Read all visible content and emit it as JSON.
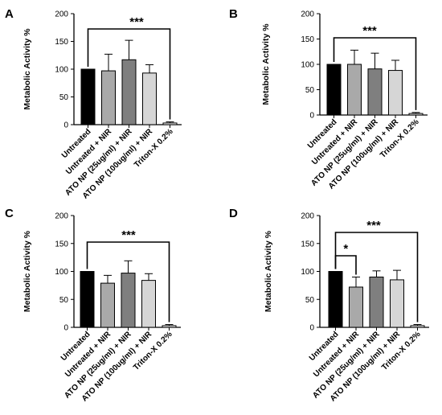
{
  "chart_data": [
    {
      "type": "bar",
      "panel_label": "A",
      "ylabel": "Metabolic Activity %",
      "ylim": [
        0,
        200
      ],
      "yticks": [
        "0",
        "50",
        "100",
        "150",
        "200"
      ],
      "categories": [
        "Untreated",
        "Untreated + NIR",
        "ATO NP (25ug/ml) + NIR",
        "ATO NP (100ug/ml) + NIR",
        "Triton-X 0.2%"
      ],
      "values": [
        100,
        97,
        117,
        93,
        3
      ],
      "errors": [
        0,
        30,
        35,
        15,
        2
      ],
      "bar_colors": [
        "#000000",
        "#a9a9a9",
        "#7f7f7f",
        "#d6d6d6",
        "#ffffff"
      ],
      "significance": [
        {
          "from": 0,
          "to": 4,
          "label": "***"
        }
      ]
    },
    {
      "type": "bar",
      "panel_label": "B",
      "ylabel": "Metabolic Activity %",
      "ylim": [
        0,
        200
      ],
      "yticks": [
        "0",
        "50",
        "100",
        "150",
        "200"
      ],
      "categories": [
        "Untreated",
        "Untreated + NIR",
        "ATO NP (25ug/ml) + NIR",
        "ATO NP (100ug/ml) + NIR",
        "Triton-X 0.2%"
      ],
      "values": [
        100,
        100,
        91,
        88,
        3
      ],
      "errors": [
        0,
        28,
        31,
        20,
        2
      ],
      "bar_colors": [
        "#000000",
        "#a9a9a9",
        "#7f7f7f",
        "#d6d6d6",
        "#ffffff"
      ],
      "significance": [
        {
          "from": 0,
          "to": 4,
          "label": "***"
        }
      ]
    },
    {
      "type": "bar",
      "panel_label": "C",
      "ylabel": "Metabolic Activity %",
      "ylim": [
        0,
        200
      ],
      "yticks": [
        "0",
        "50",
        "100",
        "150",
        "200"
      ],
      "categories": [
        "Untreated",
        "Untreated + NIR",
        "ATO NP (25ug/ml) + NIR",
        "ATO NP (100ug/ml) + NIR",
        "Triton-X 0.2%"
      ],
      "values": [
        100,
        79,
        97,
        84,
        3
      ],
      "errors": [
        0,
        14,
        22,
        12,
        2
      ],
      "bar_colors": [
        "#000000",
        "#a9a9a9",
        "#7f7f7f",
        "#d6d6d6",
        "#ffffff"
      ],
      "significance": [
        {
          "from": 0,
          "to": 4,
          "label": "***"
        }
      ]
    },
    {
      "type": "bar",
      "panel_label": "D",
      "ylabel": "Metabolic Activity %",
      "ylim": [
        0,
        200
      ],
      "yticks": [
        "0",
        "50",
        "100",
        "150",
        "200"
      ],
      "categories": [
        "Untreated",
        "Untreated + NIR",
        "ATO NP (25ug/ml) + NIR",
        "ATO NP (100ug/ml) + NIR",
        "Triton-X 0.2%"
      ],
      "values": [
        100,
        72,
        90,
        85,
        3
      ],
      "errors": [
        0,
        18,
        11,
        17,
        2
      ],
      "bar_colors": [
        "#000000",
        "#a9a9a9",
        "#7f7f7f",
        "#d6d6d6",
        "#ffffff"
      ],
      "significance": [
        {
          "from": 0,
          "to": 1,
          "label": "*"
        },
        {
          "from": 0,
          "to": 4,
          "label": "***"
        }
      ]
    }
  ]
}
